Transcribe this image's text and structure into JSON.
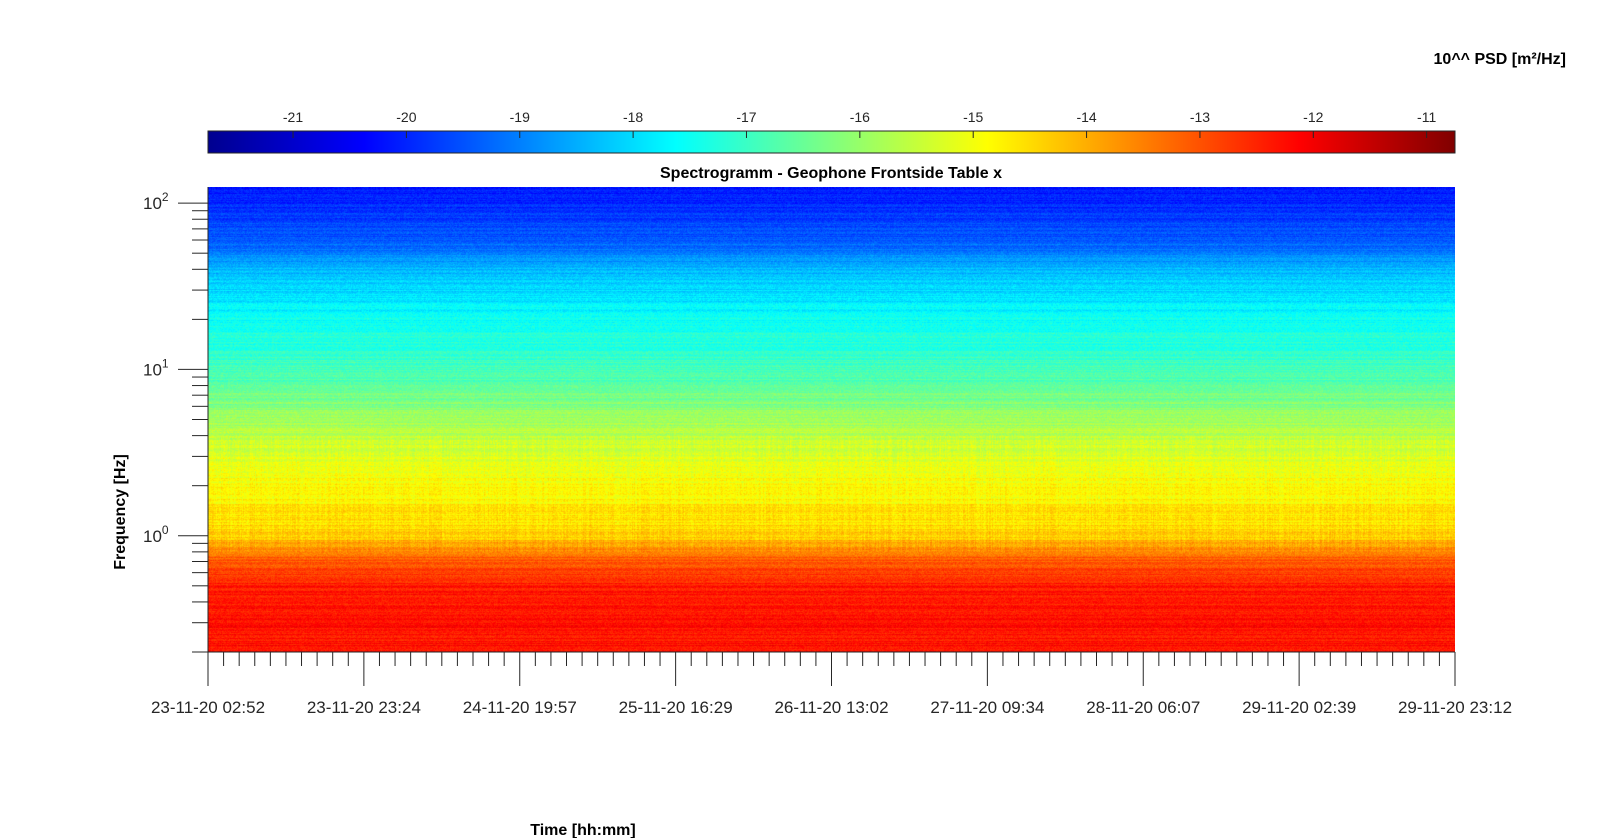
{
  "chart_data": {
    "type": "heatmap",
    "title": "Spectrogramm - Geophone Frontside Table x",
    "xlabel": "Time [hh:mm]",
    "ylabel": "Frequency [Hz]",
    "colorbar": {
      "title": "10^^ PSD [m²/Hz]",
      "range": [
        -21.75,
        -10.75
      ],
      "ticks": [
        "-21",
        "-20",
        "-19",
        "-18",
        "-17",
        "-16",
        "-15",
        "-14",
        "-13",
        "-12",
        "-11"
      ],
      "tick_values": [
        -21,
        -20,
        -19,
        -18,
        -17,
        -16,
        -15,
        -14,
        -13,
        -12,
        -11
      ],
      "colormap": "jet",
      "placement": "top"
    },
    "x_ticks": [
      "23-11-20 02:52",
      "23-11-20 23:24",
      "24-11-20 19:57",
      "25-11-20 16:29",
      "26-11-20 13:02",
      "27-11-20 09:34",
      "28-11-20 06:07",
      "29-11-20 02:39",
      "29-11-20 23:12"
    ],
    "y_scale": "log",
    "ylim": [
      0.2,
      125
    ],
    "y_ticks": [
      {
        "base": "10",
        "exp": "2",
        "value": 100
      },
      {
        "base": "10",
        "exp": "1",
        "value": 10
      },
      {
        "base": "10",
        "exp": "0",
        "value": 1
      }
    ],
    "psd_profile_log10": [
      {
        "f": 0.2,
        "psd": -12.3
      },
      {
        "f": 0.5,
        "psd": -12.4
      },
      {
        "f": 0.75,
        "psd": -13.2
      },
      {
        "f": 1.0,
        "psd": -14.4
      },
      {
        "f": 3.0,
        "psd": -15.2
      },
      {
        "f": 6.0,
        "psd": -16.2
      },
      {
        "f": 10.0,
        "psd": -16.9
      },
      {
        "f": 20.0,
        "psd": -17.5
      },
      {
        "f": 40.0,
        "psd": -18.4
      },
      {
        "f": 60.0,
        "psd": -19.4
      },
      {
        "f": 125.0,
        "psd": -20.2
      }
    ],
    "grid": false
  }
}
